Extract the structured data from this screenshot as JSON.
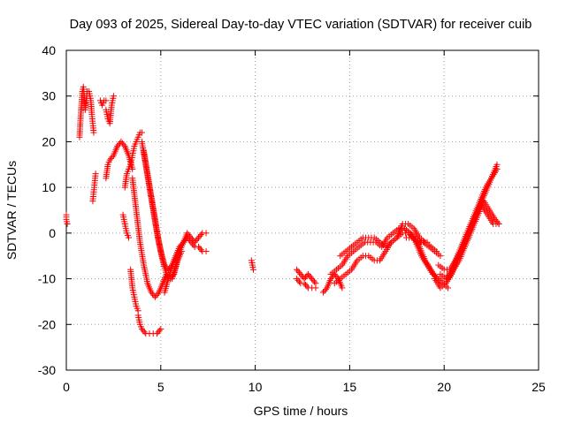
{
  "chart_data": {
    "type": "scatter",
    "title": "Day 093 of 2025, Sidereal Day-to-day VTEC variation (SDTVAR) for receiver cuib",
    "xlabel": "GPS time / hours",
    "ylabel": "SDTVAR / TECUs",
    "xlim": [
      0,
      25
    ],
    "ylim": [
      -30,
      40
    ],
    "xticks": [
      0,
      5,
      10,
      15,
      20,
      25
    ],
    "yticks": [
      -30,
      -20,
      -10,
      0,
      10,
      20,
      30,
      40
    ],
    "xtick_labels": [
      "0",
      "5",
      "10",
      "15",
      "20",
      "25"
    ],
    "ytick_labels": [
      "-30",
      "-20",
      "-10",
      "0",
      "10",
      "20",
      "30",
      "40"
    ],
    "grid": true,
    "marker": "+",
    "marker_color": "#ff0000",
    "series": [
      {
        "name": "SDTVAR",
        "tracks": [
          {
            "x": [
              0.0,
              0.0,
              0.05
            ],
            "y": [
              4,
              3,
              2
            ]
          },
          {
            "x": [
              0.7,
              0.75,
              0.8,
              0.85,
              0.9,
              0.95,
              1.0,
              1.05,
              1.1
            ],
            "y": [
              21,
              25,
              28,
              31,
              32,
              30,
              27,
              29,
              31
            ]
          },
          {
            "x": [
              1.2,
              1.3,
              1.35,
              1.4,
              1.45
            ],
            "y": [
              31,
              29,
              26,
              24,
              22
            ]
          },
          {
            "x": [
              1.4,
              1.45,
              1.5,
              1.55
            ],
            "y": [
              7,
              9,
              11,
              13
            ]
          },
          {
            "x": [
              1.8,
              1.9,
              2.0,
              2.1
            ],
            "y": [
              29,
              28,
              29,
              29
            ]
          },
          {
            "x": [
              2.1,
              2.2,
              2.3,
              2.4,
              2.5
            ],
            "y": [
              27,
              25,
              24,
              28,
              30
            ]
          },
          {
            "x": [
              2.1,
              2.2,
              2.3,
              2.5,
              2.7,
              2.9,
              3.1,
              3.3,
              3.5
            ],
            "y": [
              12,
              15,
              16,
              17,
              19,
              20,
              19,
              17,
              14
            ]
          },
          {
            "x": [
              3.0,
              3.1,
              3.2,
              3.3
            ],
            "y": [
              4,
              2,
              0,
              -1
            ]
          },
          {
            "x": [
              3.1,
              3.2,
              3.3,
              3.4,
              3.5,
              3.6,
              3.7,
              3.8,
              3.9,
              4.0
            ],
            "y": [
              10,
              13,
              14,
              15,
              17,
              19,
              20,
              21,
              22,
              22
            ]
          },
          {
            "x": [
              4.0,
              4.2,
              4.4,
              4.6,
              4.8,
              5.0,
              5.2,
              5.4,
              5.6,
              5.8,
              6.0
            ],
            "y": [
              20,
              15,
              10,
              5,
              0,
              -4,
              -7,
              -8,
              -7,
              -5,
              -3
            ]
          },
          {
            "x": [
              4.1,
              4.3,
              4.5,
              4.7,
              4.9,
              5.1,
              5.3,
              5.5,
              5.7,
              5.9,
              6.1
            ],
            "y": [
              18,
              13,
              8,
              3,
              -2,
              -6,
              -9,
              -10,
              -9,
              -6,
              -4
            ]
          },
          {
            "x": [
              3.5,
              3.7,
              3.9,
              4.1,
              4.3,
              4.5,
              4.7,
              4.9,
              5.1,
              5.3
            ],
            "y": [
              12,
              5,
              -2,
              -7,
              -11,
              -13,
              -14,
              -13,
              -11,
              -9
            ]
          },
          {
            "x": [
              3.4,
              3.5,
              3.6,
              3.7,
              3.8
            ],
            "y": [
              -8,
              -12,
              -14,
              -16,
              -17
            ]
          },
          {
            "x": [
              3.8,
              3.9,
              4.0,
              4.2,
              4.4,
              4.6,
              4.8,
              5.0
            ],
            "y": [
              -18,
              -20,
              -21,
              -22,
              -22,
              -22,
              -22,
              -21
            ]
          },
          {
            "x": [
              5.2,
              5.4,
              5.6,
              5.8,
              6.0,
              6.2,
              6.4,
              6.6,
              6.8,
              7.0,
              7.2,
              7.4
            ],
            "y": [
              -13,
              -10,
              -7,
              -5,
              -3,
              -2,
              -1,
              -2,
              -3,
              -3,
              -4,
              -4
            ]
          },
          {
            "x": [
              5.6,
              5.8,
              6.0,
              6.2,
              6.4,
              6.6,
              6.8,
              7.0,
              7.2,
              7.4
            ],
            "y": [
              -10,
              -7,
              -4,
              -2,
              0,
              -1,
              -2,
              -1,
              0,
              0
            ]
          },
          {
            "x": [
              9.8,
              9.85,
              9.9
            ],
            "y": [
              -6,
              -7,
              -8
            ]
          },
          {
            "x": [
              12.2,
              12.4,
              12.6,
              12.8,
              13.0,
              13.2
            ],
            "y": [
              -8,
              -9,
              -10,
              -9,
              -10,
              -11
            ]
          },
          {
            "x": [
              12.2,
              12.4,
              12.6,
              12.8,
              13.0,
              13.2
            ],
            "y": [
              -10,
              -11,
              -11,
              -12,
              -12,
              -12
            ]
          },
          {
            "x": [
              13.6,
              13.8,
              14.0,
              14.2,
              14.4,
              14.6
            ],
            "y": [
              -13,
              -12,
              -10,
              -9,
              -10,
              -12
            ]
          },
          {
            "x": [
              14.0,
              14.3,
              14.6,
              14.9,
              15.2,
              15.5,
              15.8,
              16.1,
              16.4,
              16.7,
              17.0,
              17.3,
              17.6,
              17.9,
              18.2,
              18.5,
              18.8,
              19.1,
              19.4,
              19.7,
              20.0
            ],
            "y": [
              -9,
              -8,
              -7,
              -5,
              -4,
              -3,
              -2,
              -2,
              -2,
              -3,
              -1,
              0,
              1,
              1,
              0,
              -2,
              -5,
              -7,
              -9,
              -10,
              -11
            ]
          },
          {
            "x": [
              14.2,
              14.5,
              14.8,
              15.1,
              15.4,
              15.7,
              16.0,
              16.3,
              16.6,
              16.9,
              17.2,
              17.5,
              17.8,
              18.1,
              18.4,
              18.7,
              19.0,
              19.3,
              19.6,
              19.9,
              20.2
            ],
            "y": [
              -11,
              -10,
              -9,
              -8,
              -6,
              -5,
              -5,
              -6,
              -6,
              -4,
              -2,
              -1,
              0,
              0,
              -1,
              -3,
              -6,
              -8,
              -10,
              -11,
              -12
            ]
          },
          {
            "x": [
              14.5,
              14.8,
              15.1,
              15.4,
              15.7,
              16.0,
              16.3,
              16.6,
              16.9,
              17.2,
              17.5,
              17.8,
              18.1,
              18.4,
              18.7,
              19.0,
              19.3,
              19.6
            ],
            "y": [
              -5,
              -4,
              -3,
              -2,
              -1,
              -1,
              -1,
              -2,
              -3,
              -2,
              -1,
              2,
              2,
              1,
              -1,
              -2,
              -3,
              -4
            ]
          },
          {
            "x": [
              17.6,
              17.9,
              18.2,
              18.5,
              18.8,
              19.1
            ],
            "y": [
              1,
              1,
              0,
              -1,
              -2,
              -2
            ]
          },
          {
            "x": [
              18.0,
              18.3,
              18.6,
              18.9,
              19.2,
              19.5,
              19.8
            ],
            "y": [
              -1,
              -1,
              -2,
              -2,
              -3,
              -4,
              -5
            ]
          },
          {
            "x": [
              19.5,
              19.8,
              20.1,
              20.4,
              20.7,
              21.0,
              21.3,
              21.6,
              21.9,
              22.2,
              22.5,
              22.8
            ],
            "y": [
              -10,
              -12,
              -11,
              -9,
              -6,
              -3,
              0,
              3,
              6,
              9,
              12,
              15
            ]
          },
          {
            "x": [
              19.8,
              20.1,
              20.4,
              20.7,
              21.0,
              21.3,
              21.6,
              21.9,
              22.2,
              22.5,
              22.8
            ],
            "y": [
              -9,
              -10,
              -8,
              -5,
              -2,
              1,
              4,
              7,
              10,
              12,
              14
            ]
          },
          {
            "x": [
              19.7,
              20.0,
              20.3,
              20.6,
              20.9,
              21.2,
              21.5,
              21.8,
              22.1,
              22.4,
              22.7,
              22.9
            ],
            "y": [
              -7,
              -8,
              -8,
              -6,
              -4,
              -1,
              2,
              5,
              7,
              5,
              3,
              2
            ]
          },
          {
            "x": [
              20.2,
              20.5,
              20.8,
              21.1,
              21.4,
              21.7,
              22.0,
              22.3,
              22.6,
              22.9
            ],
            "y": [
              -10,
              -8,
              -6,
              -3,
              0,
              3,
              6,
              4,
              2,
              2
            ]
          }
        ]
      }
    ]
  }
}
